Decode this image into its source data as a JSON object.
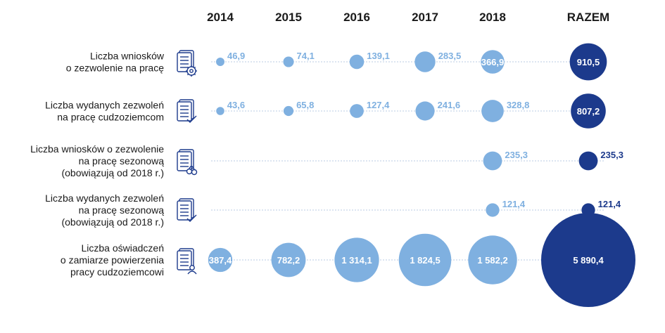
{
  "chart_data": {
    "type": "bubble",
    "columns": [
      "2014",
      "2015",
      "2016",
      "2017",
      "2018",
      "RAZEM"
    ],
    "colors": {
      "years": "#7fb0e0",
      "total": "#1c3a8c",
      "guide": "#b9cbe3"
    },
    "rows": [
      {
        "label_lines": [
          "Liczba wniosków",
          "o zezwolenie na  pracę"
        ],
        "icon": "document-gear-icon",
        "values": [
          46.9,
          74.1,
          139.1,
          283.5,
          366.9,
          910.5
        ],
        "labels": [
          "46,9",
          "74,1",
          "139,1",
          "283,5",
          "366,9",
          "910,5"
        ]
      },
      {
        "label_lines": [
          "Liczba wydanych zezwoleń",
          "na pracę cudzoziemcom"
        ],
        "icon": "document-check-icon",
        "values": [
          43.6,
          65.8,
          127.4,
          241.6,
          328.8,
          807.2
        ],
        "labels": [
          "43,6",
          "65,8",
          "127,4",
          "241,6",
          "328,8",
          "807,2"
        ]
      },
      {
        "label_lines": [
          "Liczba wniosków o zezwolenie",
          "na pracę sezonową",
          "(obowiązują od 2018 r.)"
        ],
        "icon": "document-cherry-icon",
        "values": [
          null,
          null,
          null,
          null,
          235.3,
          235.3
        ],
        "labels": [
          "",
          "",
          "",
          "",
          "235,3",
          "235,3"
        ]
      },
      {
        "label_lines": [
          "Liczba wydanych zezwoleń",
          "na pracę sezonową",
          "(obowiązują od 2018 r.)"
        ],
        "icon": "document-check-icon",
        "values": [
          null,
          null,
          null,
          null,
          121.4,
          121.4
        ],
        "labels": [
          "",
          "",
          "",
          "",
          "121,4",
          "121,4"
        ]
      },
      {
        "label_lines": [
          "Liczba oświadczeń",
          "o zamiarze powierzenia",
          "pracy cudzoziemcowi"
        ],
        "icon": "document-person-icon",
        "values": [
          387.4,
          782.2,
          1314.1,
          1824.5,
          1582.2,
          5890.4
        ],
        "labels": [
          "387,4",
          "782,2",
          "1 314,1",
          "1 824,5",
          "1 582,2",
          "5 890,4"
        ]
      }
    ]
  }
}
